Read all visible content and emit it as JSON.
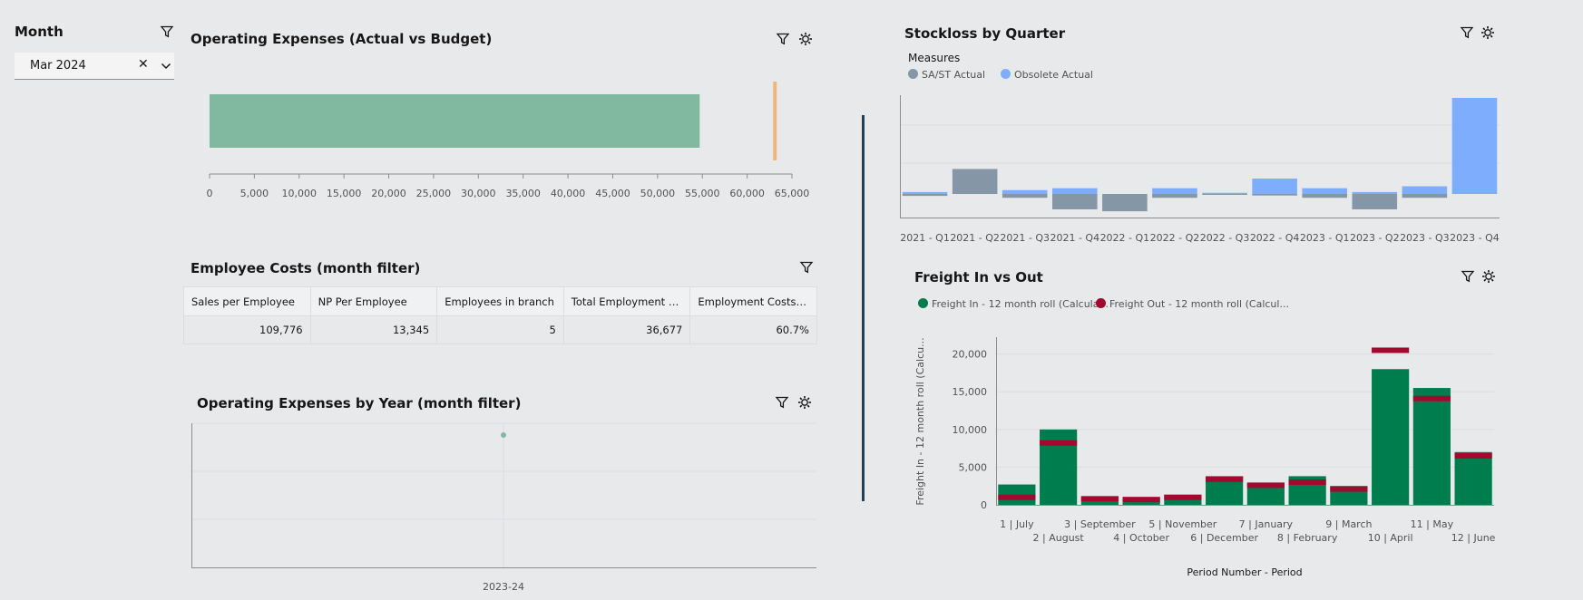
{
  "filter": {
    "title": "Month",
    "selected": "Mar 2024"
  },
  "opex_actual_budget": {
    "title": "Operating Expenses (Actual vs Budget)",
    "chart_data": {
      "type": "bar",
      "orientation": "horizontal",
      "actual": 54700,
      "budget_marker": 63100,
      "xlim": [
        0,
        65000
      ],
      "ticks": [
        "0",
        "5,000",
        "10,000",
        "15,000",
        "20,000",
        "25,000",
        "30,000",
        "35,000",
        "40,000",
        "45,000",
        "50,000",
        "55,000",
        "60,000",
        "65,000"
      ],
      "colors": {
        "bar": "#81b8a0",
        "marker": "#f0b877"
      }
    }
  },
  "employee_costs": {
    "title": "Employee Costs (month filter)",
    "columns": [
      "Sales per Employee",
      "NP Per Employee",
      "Employees in branch",
      "Total Employment C...",
      "Employment Costs ..."
    ],
    "rows": [
      [
        "109,776",
        "13,345",
        "5",
        "36,677",
        "60.7%"
      ]
    ]
  },
  "opex_by_year": {
    "title": "Operating Expenses by Year (month filter)",
    "chart_data": {
      "type": "scatter",
      "categories": [
        "2023-24"
      ],
      "point_color": "#81b8a0"
    }
  },
  "stockloss": {
    "title": "Stockloss by Quarter",
    "legend_title": "Measures",
    "chart_data": {
      "type": "bar",
      "categories": [
        "2021 - Q1",
        "2021 - Q2",
        "2021 - Q3",
        "2021 - Q4",
        "2022 - Q1",
        "2022 - Q2",
        "2022 - Q3",
        "2022 - Q4",
        "2023 - Q1",
        "2023 - Q2",
        "2023 - Q3",
        "2023 - Q4"
      ],
      "series": [
        {
          "name": "SA/ST Actual",
          "color": "#8596a6",
          "values": [
            -0.5,
            6.5,
            -1,
            -4,
            -4.5,
            -1,
            -0.2,
            -0.4,
            -1,
            -4,
            -1,
            0
          ]
        },
        {
          "name": "Obsolete Actual",
          "color": "#7fadfd",
          "values": [
            0.5,
            0,
            1,
            1.5,
            0,
            1.5,
            0.3,
            4,
            1.5,
            0.5,
            2,
            25
          ]
        }
      ]
    }
  },
  "freight": {
    "title": "Freight In vs Out",
    "legend": [
      "Freight In - 12 month roll (Calcula...",
      "Freight Out - 12 month roll (Calcul..."
    ],
    "colors": {
      "in": "#007d4e",
      "out": "#a2092f"
    },
    "y_label": "Freight In - 12 month roll (Calcu...",
    "x_label": "Period Number - Period",
    "y_ticks": [
      "0",
      "5,000",
      "10,000",
      "15,000",
      "20,000"
    ],
    "chart_data": {
      "type": "bar",
      "categories": [
        "1 | July",
        "2 | August",
        "3 | September",
        "4 | October",
        "5 | November",
        "6 | December",
        "7 | January",
        "8 | February",
        "9 | March",
        "10 | April",
        "11 | May",
        "12 | June"
      ],
      "ylim": [
        0,
        22000
      ],
      "series": [
        {
          "name": "Freight In - 12 month roll",
          "values": [
            2700,
            10000,
            1100,
            1000,
            1300,
            3800,
            2900,
            3800,
            2500,
            18000,
            15500,
            7000
          ]
        },
        {
          "name": "Freight Out - 12 month roll",
          "values": [
            1000,
            8200,
            800,
            700,
            1000,
            3400,
            2600,
            3000,
            2100,
            20500,
            14100,
            6500
          ]
        }
      ]
    }
  }
}
